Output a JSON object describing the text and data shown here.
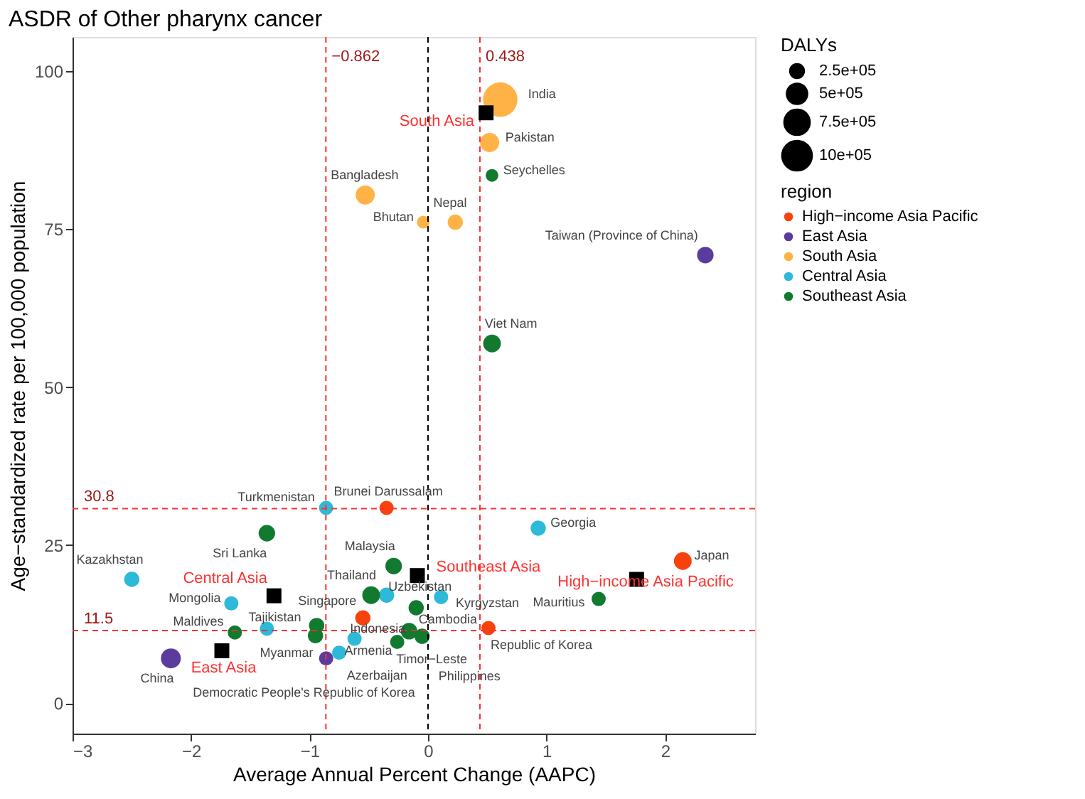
{
  "chart_data": {
    "type": "bubble",
    "title": "ASDR of Other pharynx cancer",
    "xlabel": "Average Annual Percent Change (AAPC)",
    "ylabel": "Age−standardized rate per 100,000 population",
    "legend_title": [
      "region",
      "DALYs"
    ],
    "legend": "right",
    "grid": false,
    "marker": "circle",
    "xlim": [
      -3,
      2.76
    ],
    "ylim": [
      -4.8,
      105.4
    ],
    "xticks": [
      {
        "value": -3,
        "label": "−3"
      },
      {
        "value": -2,
        "label": "−2"
      },
      {
        "value": -1,
        "label": "−1"
      },
      0,
      1,
      2
    ],
    "yticks": [
      0,
      25,
      50,
      75,
      100
    ],
    "size_legend": [
      {
        "value": 250000,
        "label": "2.5e+05"
      },
      {
        "value": 500000,
        "label": "5e+05"
      },
      {
        "value": 750000,
        "label": "7.5e+05"
      },
      {
        "value": 1000000,
        "label": "10e+05"
      }
    ],
    "series": [
      {
        "name": "High−income Asia Pacific",
        "color": "#f8420d",
        "x": [
          -0.35,
          -0.55,
          0.51,
          2.15
        ],
        "values": [
          30.9,
          13.5,
          11.9,
          22.5
        ],
        "sizes": [
          200000,
          230000,
          200000,
          310000
        ],
        "value_labels": [
          "Brunei Darussalam",
          "Singapore",
          "Republic of Korea",
          "Japan"
        ]
      },
      {
        "name": "East Asia",
        "color": "#5b3b9b",
        "x": [
          -2.17,
          -0.86,
          2.34
        ],
        "values": [
          7.1,
          7.1,
          70.9
        ],
        "sizes": [
          390000,
          200000,
          270000
        ],
        "value_labels": [
          "China",
          "Democratic People's Republic of Korea",
          "Taiwan (Province of China)"
        ]
      },
      {
        "name": "South Asia",
        "color": "#ffb347",
        "x": [
          0.61,
          0.52,
          -0.53,
          -0.04,
          0.23
        ],
        "values": [
          95.5,
          88.7,
          80.4,
          76.1,
          76.1
        ],
        "sizes": [
          1170000,
          360000,
          360000,
          160000,
          230000
        ],
        "value_labels": [
          "India",
          "Pakistan",
          "Bangladesh",
          "Bhutan",
          "Nepal"
        ]
      },
      {
        "name": "Central Asia",
        "color": "#2cbad8",
        "x": [
          -0.86,
          -2.5,
          -1.66,
          -0.35,
          0.11,
          -1.36,
          -0.62,
          -0.75,
          0.93
        ],
        "values": [
          30.9,
          19.6,
          15.8,
          17.1,
          16.8,
          11.8,
          10.2,
          8.0,
          27.7
        ],
        "sizes": [
          200000,
          230000,
          200000,
          230000,
          200000,
          200000,
          200000,
          200000,
          230000
        ],
        "value_labels": [
          "Turkmenistan",
          "Kazakhstan",
          "Mongolia",
          "Uzbekistan",
          "Kyrgyzstan",
          "Tajikistan",
          "Armenia",
          "Azerbaijan",
          "Georgia"
        ]
      },
      {
        "name": "Southeast Asia",
        "color": "#117a2f",
        "x": [
          0.54,
          0.54,
          -1.36,
          -0.29,
          -0.48,
          -0.1,
          -1.63,
          -0.94,
          -0.95,
          -0.26,
          -0.16,
          -0.05,
          1.44
        ],
        "values": [
          83.5,
          56.9,
          26.9,
          21.7,
          17.1,
          15.1,
          11.2,
          12.3,
          10.7,
          9.7,
          11.4,
          10.6,
          16.5
        ],
        "sizes": [
          160000,
          310000,
          270000,
          270000,
          310000,
          230000,
          200000,
          230000,
          230000,
          200000,
          270000,
          230000,
          200000
        ],
        "value_labels": [
          "Seychelles",
          "Viet Nam",
          "Sri Lanka",
          "Malaysia",
          "Thailand",
          "Cambodia",
          "Maldives",
          null,
          "Myanmar",
          "Timor−Leste",
          "Indonesia",
          "Philippines",
          "Mauritius"
        ]
      },
      {
        "type": "scatter",
        "marker": "square",
        "color": "#000000",
        "x": [
          0.49,
          -1.74,
          -1.3,
          -0.09,
          1.76
        ],
        "values": [
          93.4,
          8.3,
          17.0,
          20.2,
          19.6
        ],
        "value_labels": [
          "South Asia",
          "East Asia",
          "Central Asia",
          "Southeast Asia",
          "High−income Asia Pacific"
        ]
      }
    ],
    "ref_lines": [
      {
        "axis": "x",
        "value": -0.862,
        "label": "−0.862",
        "color": "#ff3030",
        "line_style": "dashed"
      },
      {
        "axis": "x",
        "value": 0.438,
        "label": "0.438",
        "color": "#ff3030",
        "line_style": "dashed"
      },
      {
        "axis": "x",
        "value": 0,
        "label": null,
        "color": "#000000",
        "line_style": "dashed"
      },
      {
        "axis": "y",
        "value": 30.8,
        "label": "30.8",
        "color": "#ff3030",
        "line_style": "dashed"
      },
      {
        "axis": "y",
        "value": 11.5,
        "label": "11.5",
        "color": "#ff3030",
        "line_style": "dashed"
      }
    ]
  }
}
